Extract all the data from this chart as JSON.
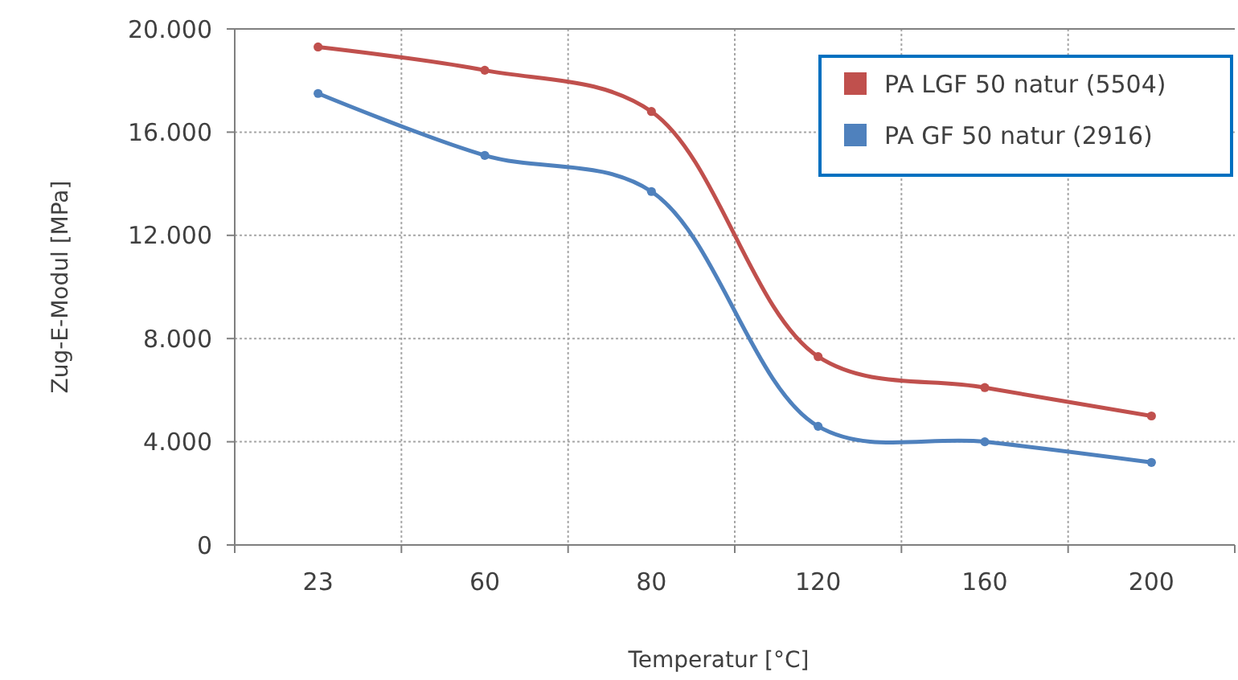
{
  "chart_data": {
    "type": "line",
    "xlabel": "Temperatur [°C]",
    "ylabel": "Zug-E-Modul [MPa]",
    "categories": [
      "23",
      "60",
      "80",
      "120",
      "160",
      "200"
    ],
    "series": [
      {
        "name": "PA LGF 50 natur (5504)",
        "color": "#c0504d",
        "values": [
          19300,
          18400,
          16800,
          7300,
          6100,
          5000
        ]
      },
      {
        "name": "PA GF 50 natur (2916)",
        "color": "#4f81bd",
        "values": [
          17500,
          15100,
          13700,
          4600,
          4000,
          3200
        ]
      }
    ],
    "ylim": [
      0,
      20000
    ],
    "yticks": [
      0,
      {
        "value": 4000,
        "label": "4.000"
      },
      {
        "value": 8000,
        "label": "8.000"
      },
      {
        "value": 12000,
        "label": "12.000"
      },
      {
        "value": 16000,
        "label": "16.000"
      },
      {
        "value": 20000,
        "label": "20.000"
      }
    ],
    "grid": true,
    "legend": "top right",
    "marker": "circle",
    "line_style": "solid"
  }
}
